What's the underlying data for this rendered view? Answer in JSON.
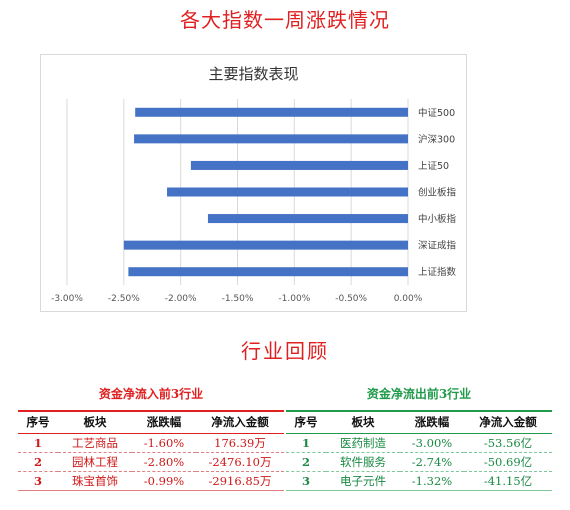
{
  "page": {
    "title": "各大指数一周涨跌情况",
    "section_title": "行业回顾"
  },
  "chart_data": {
    "type": "bar",
    "orientation": "horizontal",
    "title": "主要指数表现",
    "categories": [
      "中证500",
      "沪深300",
      "上证50",
      "创业板指",
      "中小板指",
      "深证成指",
      "上证指数"
    ],
    "values": [
      -2.4,
      -2.41,
      -1.91,
      -2.12,
      -1.76,
      -2.5,
      -2.46
    ],
    "xlim": [
      -3.0,
      0.0
    ],
    "ticks": [
      "-3.00%",
      "-2.50%",
      "-2.00%",
      "-1.50%",
      "-1.00%",
      "-0.50%",
      "0.00%"
    ],
    "tick_values": [
      -3.0,
      -2.5,
      -2.0,
      -1.5,
      -1.0,
      -0.5,
      0.0
    ],
    "grid": "vertical",
    "bar_color": "#4472c4"
  },
  "inflow": {
    "title": "资金净流入前3行业",
    "headers": [
      "序号",
      "板块",
      "涨跌幅",
      "净流入金额"
    ],
    "rows": [
      [
        "1",
        "工艺商品",
        "-1.60%",
        "176.39万"
      ],
      [
        "2",
        "园林工程",
        "-2.80%",
        "-2476.10万"
      ],
      [
        "3",
        "珠宝首饰",
        "-0.99%",
        "-2916.85万"
      ]
    ],
    "color": "#e02020"
  },
  "outflow": {
    "title": "资金净流出前3行业",
    "headers": [
      "序号",
      "板块",
      "涨跌幅",
      "净流入金额"
    ],
    "rows": [
      [
        "1",
        "医药制造",
        "-3.00%",
        "-53.56亿"
      ],
      [
        "2",
        "软件服务",
        "-2.74%",
        "-50.69亿"
      ],
      [
        "3",
        "电子元件",
        "-1.32%",
        "-41.15亿"
      ]
    ],
    "color": "#1f9a4a"
  }
}
